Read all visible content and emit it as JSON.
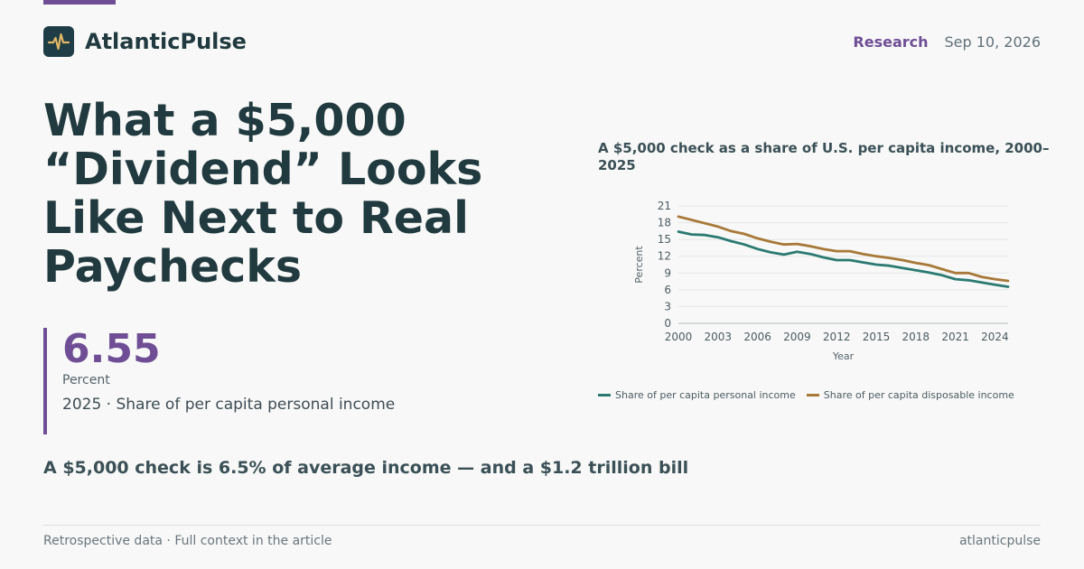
{
  "brand": {
    "name": "AtlanticPulse",
    "logo_icon": "pulse-icon",
    "accent_color": "#6f4e96"
  },
  "header": {
    "section": "Research",
    "date": "Sep 10, 2026"
  },
  "headline": "What a $5,000 “Dividend” Looks Like Next to Real Paychecks",
  "stat": {
    "value": "6.55",
    "unit": "Percent",
    "description": "2025 · Share of per capita personal income"
  },
  "subheadline": "A $5,000 check is 6.5% of average income — and a $1.2 trillion bill",
  "footer": {
    "left": "Retrospective data · Full context in the article",
    "right": "atlanticpulse"
  },
  "chart_data": {
    "type": "line",
    "title": "A $5,000 check as a share of U.S. per capita income, 2000–2025",
    "xlabel": "Year",
    "ylabel": "Percent",
    "xlim": [
      2000,
      2025
    ],
    "ylim": [
      0,
      21
    ],
    "x_ticks": [
      2000,
      2003,
      2006,
      2009,
      2012,
      2015,
      2018,
      2021,
      2024
    ],
    "y_ticks": [
      0,
      3,
      6,
      9,
      12,
      15,
      18,
      21
    ],
    "grid": true,
    "legend_position": "bottom",
    "x": [
      2000,
      2001,
      2002,
      2003,
      2004,
      2005,
      2006,
      2007,
      2008,
      2009,
      2010,
      2011,
      2012,
      2013,
      2014,
      2015,
      2016,
      2017,
      2018,
      2019,
      2020,
      2021,
      2022,
      2023,
      2024,
      2025
    ],
    "series": [
      {
        "name": "Share of per capita personal income",
        "color": "#2b7a72",
        "values": [
          16.4,
          15.9,
          15.8,
          15.4,
          14.7,
          14.1,
          13.3,
          12.7,
          12.3,
          12.8,
          12.4,
          11.8,
          11.3,
          11.3,
          10.9,
          10.5,
          10.3,
          9.9,
          9.5,
          9.1,
          8.6,
          7.9,
          7.7,
          7.3,
          6.9,
          6.55
        ]
      },
      {
        "name": "Share of per capita disposable income",
        "color": "#a87838",
        "values": [
          19.1,
          18.5,
          17.9,
          17.3,
          16.5,
          16.0,
          15.2,
          14.6,
          14.1,
          14.2,
          13.8,
          13.3,
          12.9,
          12.9,
          12.4,
          12.0,
          11.7,
          11.3,
          10.8,
          10.4,
          9.7,
          9.0,
          9.0,
          8.3,
          7.9,
          7.6
        ]
      }
    ]
  }
}
